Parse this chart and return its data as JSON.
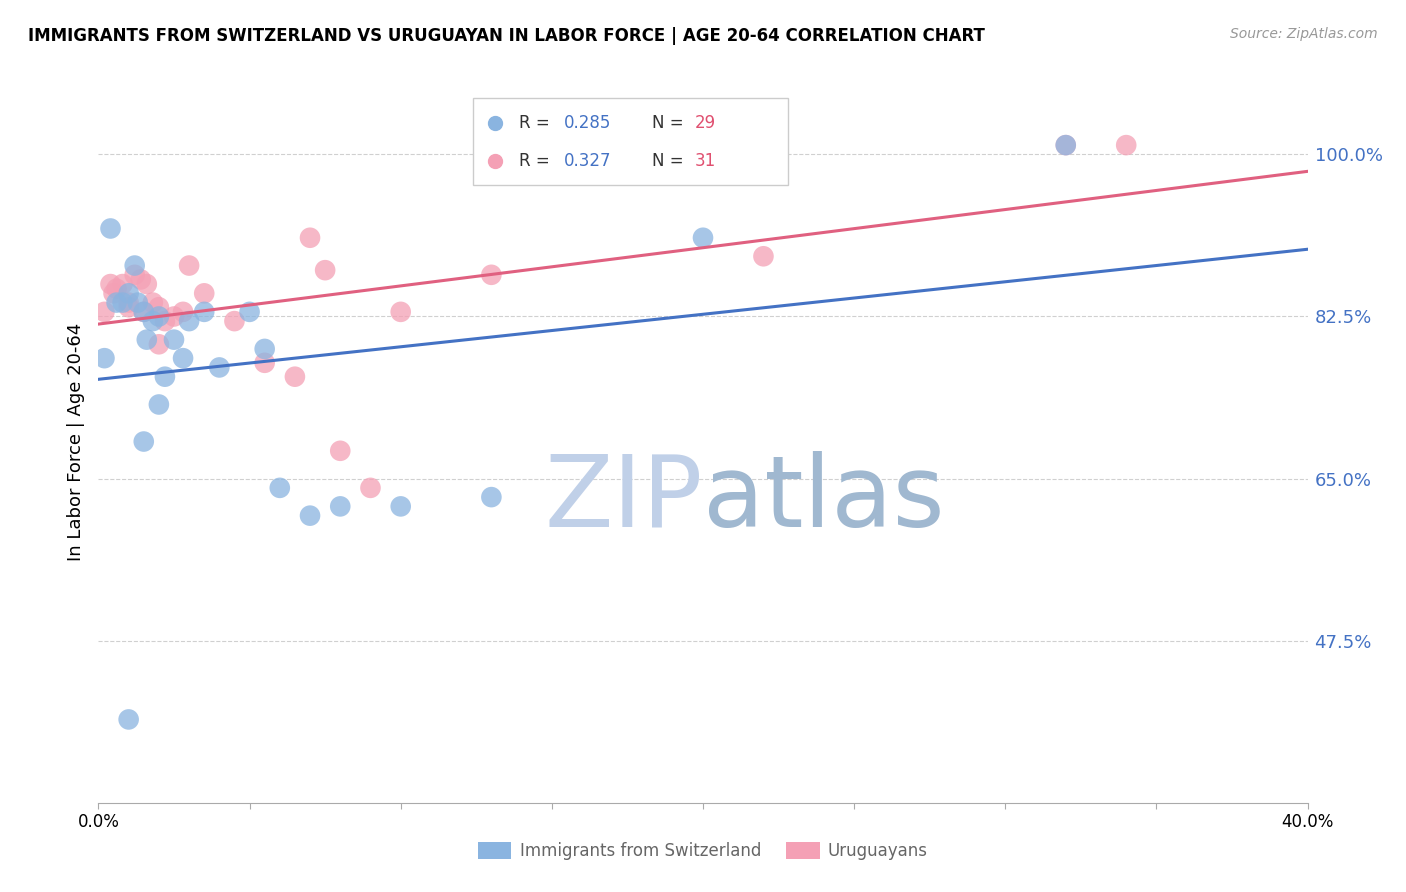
{
  "title": "IMMIGRANTS FROM SWITZERLAND VS URUGUAYAN IN LABOR FORCE | AGE 20-64 CORRELATION CHART",
  "source": "Source: ZipAtlas.com",
  "ylabel": "In Labor Force | Age 20-64",
  "right_yticks": [
    100.0,
    82.5,
    65.0,
    47.5
  ],
  "xlim": [
    0.0,
    40.0
  ],
  "ylim": [
    30.0,
    108.0
  ],
  "blue_R": 0.285,
  "blue_N": 29,
  "pink_R": 0.327,
  "pink_N": 31,
  "blue_color": "#8ab4e0",
  "pink_color": "#f4a0b5",
  "blue_line_color": "#4472c4",
  "pink_line_color": "#e06080",
  "watermark_blue": "#c8d8f0",
  "watermark_pink": "#a0b8d8",
  "legend_R_color": "#4472c4",
  "legend_N_color": "#e05070",
  "blue_scatter_x": [
    0.2,
    0.4,
    0.6,
    0.8,
    1.0,
    1.2,
    1.3,
    1.5,
    1.6,
    1.8,
    2.0,
    2.2,
    2.5,
    2.8,
    3.0,
    3.5,
    4.0,
    5.0,
    5.5,
    6.0,
    7.0,
    8.0,
    10.0,
    13.0,
    20.0,
    32.0,
    1.0,
    1.5,
    2.0
  ],
  "blue_scatter_y": [
    78.0,
    92.0,
    84.0,
    84.0,
    85.0,
    88.0,
    84.0,
    83.0,
    80.0,
    82.0,
    82.5,
    76.0,
    80.0,
    78.0,
    82.0,
    83.0,
    77.0,
    83.0,
    79.0,
    64.0,
    61.0,
    62.0,
    62.0,
    63.0,
    91.0,
    101.0,
    39.0,
    69.0,
    73.0
  ],
  "pink_scatter_x": [
    0.2,
    0.4,
    0.6,
    0.8,
    1.0,
    1.2,
    1.4,
    1.6,
    1.8,
    2.0,
    2.2,
    2.5,
    2.8,
    3.0,
    3.5,
    4.5,
    5.5,
    6.5,
    7.0,
    7.5,
    9.0,
    10.0,
    13.0,
    22.0,
    34.0,
    0.5,
    1.0,
    1.5,
    2.0,
    8.0,
    32.0
  ],
  "pink_scatter_y": [
    83.0,
    86.0,
    85.5,
    86.0,
    84.0,
    87.0,
    86.5,
    86.0,
    84.0,
    83.5,
    82.0,
    82.5,
    83.0,
    88.0,
    85.0,
    82.0,
    77.5,
    76.0,
    91.0,
    87.5,
    64.0,
    83.0,
    87.0,
    89.0,
    101.0,
    85.0,
    83.5,
    83.0,
    79.5,
    68.0,
    101.0
  ]
}
